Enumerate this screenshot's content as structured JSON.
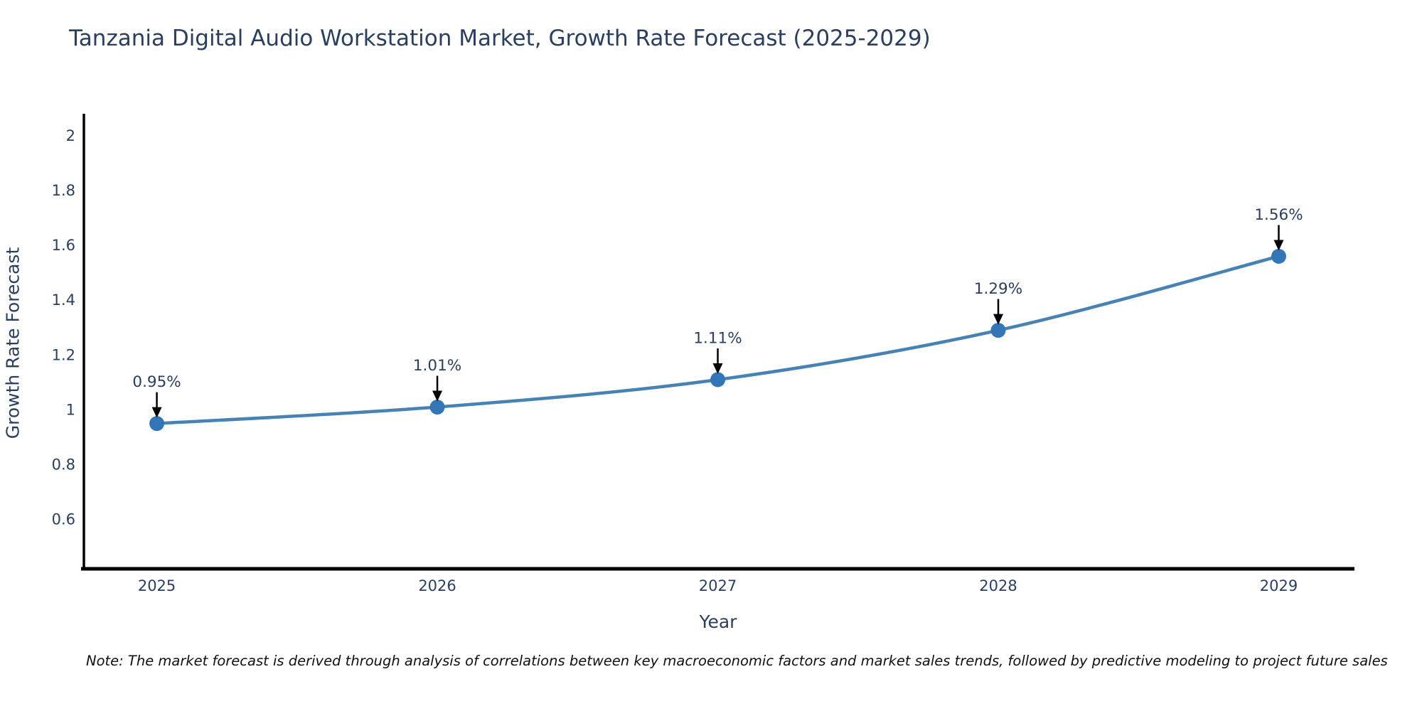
{
  "title": "Tanzania Digital Audio Workstation Market, Growth Rate Forecast (2025-2029)",
  "footnote": "Note: The market forecast is derived through analysis of correlations between key macroeconomic factors and market sales trends, followed by predictive modeling to project future sales",
  "chart_data": {
    "type": "line",
    "title": "Tanzania Digital Audio Workstation Market, Growth Rate Forecast (2025-2029)",
    "xlabel": "Year",
    "ylabel": "Growth Rate Forecast",
    "x": [
      2025,
      2026,
      2027,
      2028,
      2029
    ],
    "values": [
      0.95,
      1.01,
      1.11,
      1.29,
      1.56
    ],
    "point_labels": [
      "0.95%",
      "1.01%",
      "1.11%",
      "1.29%",
      "1.56%"
    ],
    "x_tick_labels": [
      "2025",
      "2026",
      "2027",
      "2028",
      "2029"
    ],
    "y_ticks": [
      0.6,
      0.8,
      1,
      1.2,
      1.4,
      1.6,
      1.8,
      2
    ],
    "y_tick_labels": [
      "0.6",
      "0.8",
      "1",
      "1.2",
      "1.4",
      "1.6",
      "1.8",
      "2"
    ],
    "xlim": [
      2024.74,
      2029.27
    ],
    "ylim": [
      0.42,
      2.08
    ],
    "grid": false,
    "legend": "none",
    "colors": {
      "line": "#4682b4",
      "marker": "#3376b8",
      "axis": "#000000",
      "tick_text": "#2a3f5f",
      "annotation_text": "#2a3f5f",
      "annotation_arrow": "#000000",
      "title_text": "#2a3f5f",
      "background": "#ffffff"
    }
  }
}
